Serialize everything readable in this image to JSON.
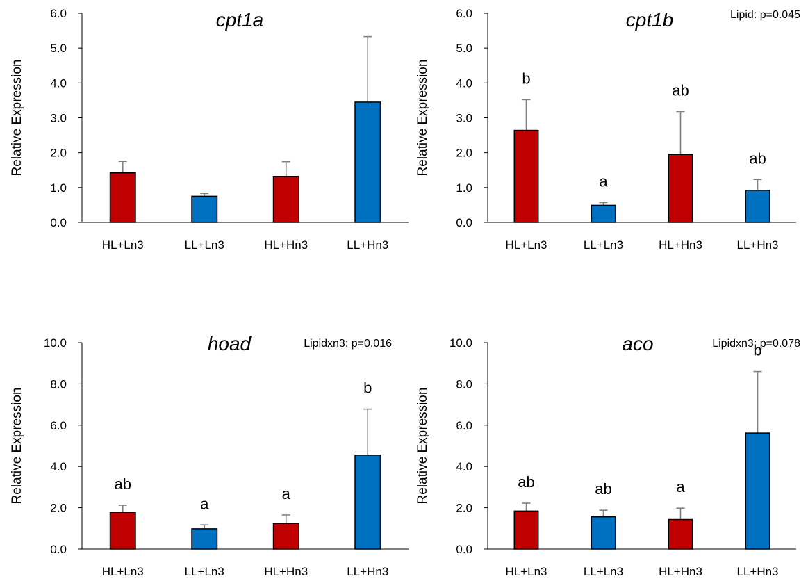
{
  "colors": {
    "red": "#c00000",
    "blue": "#0070c0",
    "error": "#7f7f7f",
    "axis": "#000000"
  },
  "chart_data": [
    {
      "type": "bar",
      "title": "cpt1a",
      "annotation": "",
      "ylabel": "Relative Expression",
      "xlabel": "",
      "categories": [
        "HL+Ln3",
        "LL+Ln3",
        "HL+Hn3",
        "LL+Hn3"
      ],
      "values": [
        1.42,
        0.75,
        1.32,
        3.45
      ],
      "error_upper": [
        1.75,
        0.83,
        1.74,
        5.33
      ],
      "bar_colors": [
        "red",
        "blue",
        "red",
        "blue"
      ],
      "letters": [
        "",
        "",
        "",
        ""
      ],
      "ylim": [
        0,
        6
      ],
      "yticks": [
        "0.0",
        "1.0",
        "2.0",
        "3.0",
        "4.0",
        "5.0",
        "6.0"
      ],
      "grid": false
    },
    {
      "type": "bar",
      "title": "cpt1b",
      "annotation": "Lipid: p=0.045",
      "ylabel": "Relative Expression",
      "xlabel": "",
      "categories": [
        "HL+Ln3",
        "LL+Ln3",
        "HL+Hn3",
        "LL+Hn3"
      ],
      "values": [
        2.64,
        0.49,
        1.95,
        0.92
      ],
      "error_upper": [
        3.52,
        0.57,
        3.18,
        1.23
      ],
      "bar_colors": [
        "red",
        "blue",
        "red",
        "blue"
      ],
      "letters": [
        "b",
        "a",
        "ab",
        "ab"
      ],
      "ylim": [
        0,
        6
      ],
      "yticks": [
        "0.0",
        "1.0",
        "2.0",
        "3.0",
        "4.0",
        "5.0",
        "6.0"
      ],
      "grid": false
    },
    {
      "type": "bar",
      "title": "hoad",
      "annotation": "Lipidxn3: p=0.016",
      "ylabel": "Relative Expression",
      "xlabel": "",
      "categories": [
        "HL+Ln3",
        "LL+Ln3",
        "HL+Hn3",
        "LL+Hn3"
      ],
      "values": [
        1.78,
        0.98,
        1.24,
        4.55
      ],
      "error_upper": [
        2.12,
        1.17,
        1.65,
        6.78
      ],
      "bar_colors": [
        "red",
        "blue",
        "red",
        "blue"
      ],
      "letters": [
        "ab",
        "a",
        "a",
        "b"
      ],
      "ylim": [
        0,
        10
      ],
      "yticks": [
        "0.0",
        "2.0",
        "4.0",
        "6.0",
        "8.0",
        "10.0"
      ],
      "grid": false
    },
    {
      "type": "bar",
      "title": "aco",
      "annotation": "Lipidxn3: p=0.078",
      "ylabel": "Relative Expression",
      "xlabel": "",
      "categories": [
        "HL+Ln3",
        "LL+Ln3",
        "HL+Hn3",
        "LL+Hn3"
      ],
      "values": [
        1.84,
        1.56,
        1.43,
        5.62
      ],
      "error_upper": [
        2.22,
        1.88,
        1.98,
        8.6
      ],
      "bar_colors": [
        "red",
        "blue",
        "red",
        "blue"
      ],
      "letters": [
        "ab",
        "ab",
        "a",
        "b"
      ],
      "ylim": [
        0,
        10
      ],
      "yticks": [
        "0.0",
        "2.0",
        "4.0",
        "6.0",
        "8.0",
        "10.0"
      ],
      "grid": false
    }
  ]
}
